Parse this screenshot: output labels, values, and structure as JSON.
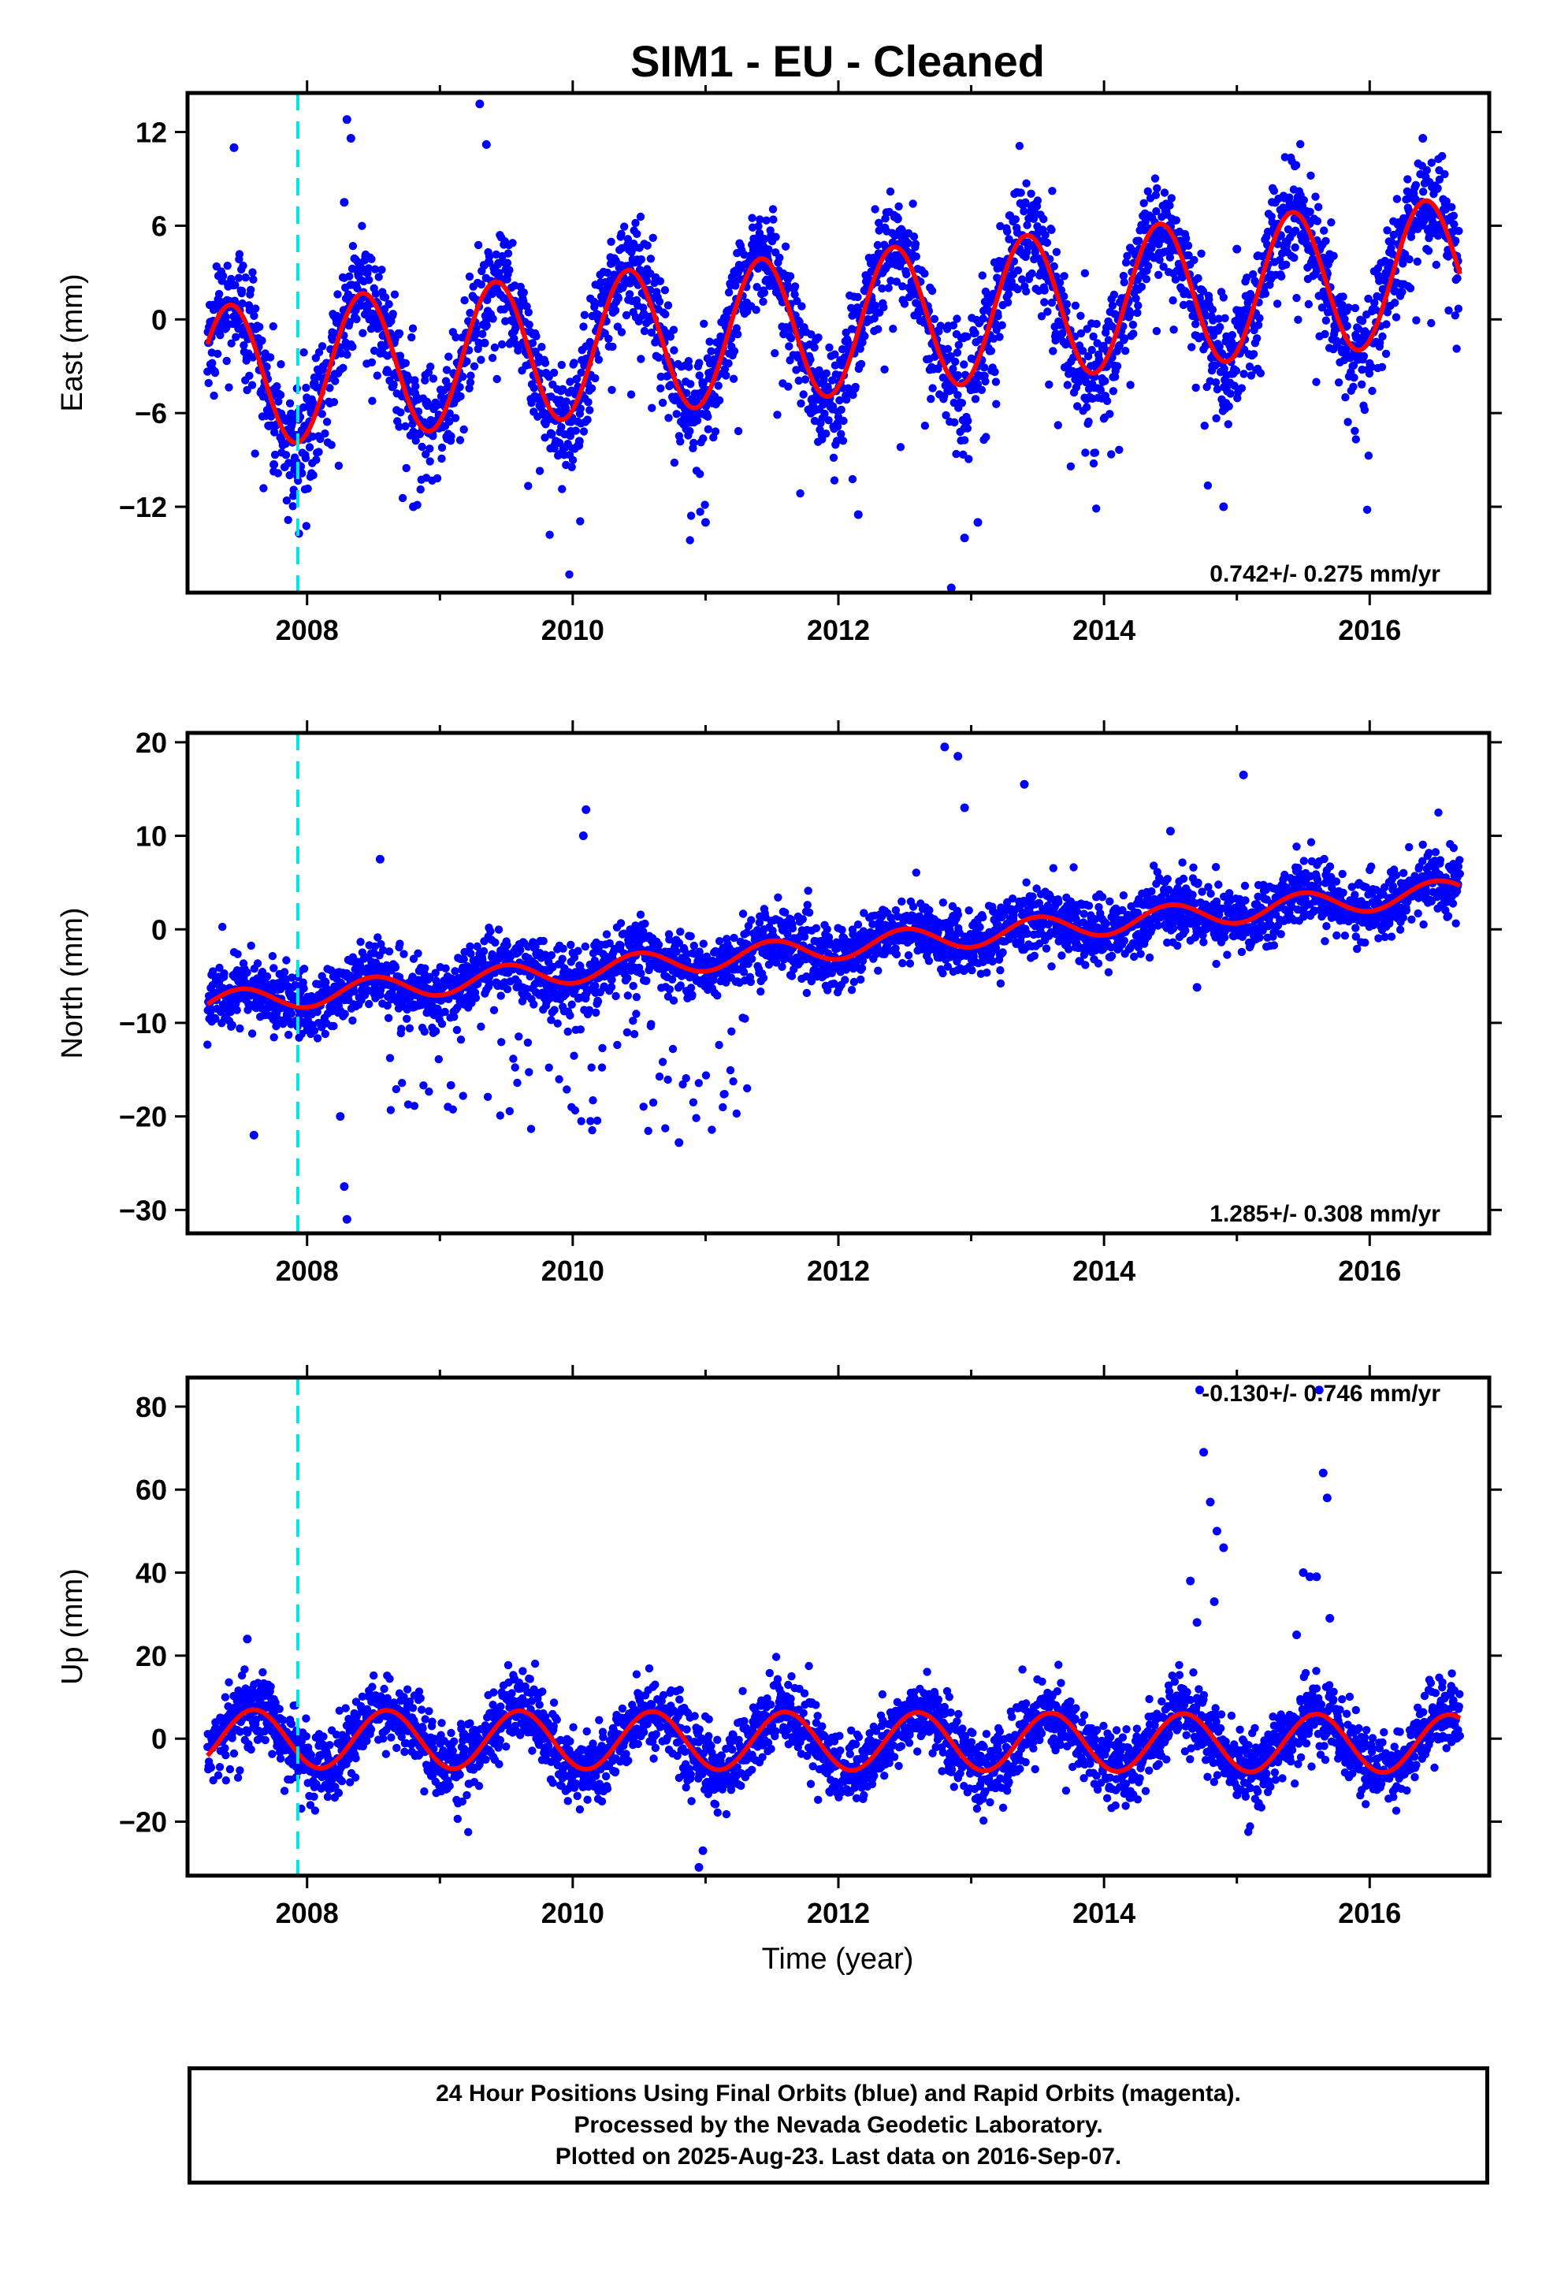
{
  "title": "SIM1  - EU - Cleaned",
  "xlabel": "Time (year)",
  "colors": {
    "points": "#0000ff",
    "fit": "#ff0000",
    "event": "#00e5e5",
    "frame": "#000000"
  },
  "footer": {
    "line1": "24 Hour Positions Using Final Orbits (blue) and Rapid Orbits (magenta).",
    "line2": "Processed by the Nevada Geodetic Laboratory.",
    "line3": "Plotted on 2025-Aug-23. Last data on 2016-Sep-07."
  },
  "chart_data": [
    {
      "type": "scatter",
      "panel": "east",
      "ylabel": "East (mm)",
      "rate_text": "0.742+/- 0.275 mm/yr",
      "xlim": [
        2007.1,
        2016.9
      ],
      "ylim": [
        -17.5,
        14.5
      ],
      "x_ticks": [
        2008,
        2010,
        2012,
        2014,
        2016
      ],
      "y_ticks": [
        12,
        6,
        0,
        -6,
        -12
      ],
      "y_tick_labels": [
        "12",
        "6",
        "0",
        "−6",
        "−12"
      ],
      "event_lines": [
        2007.93
      ],
      "fit": {
        "rate": 0.742,
        "offset": -3.8,
        "ref_year": 2007.25,
        "amplitude": 4.6,
        "phase_peak": 0.42
      },
      "outliers": [
        {
          "x": 2007.45,
          "y": 11
        },
        {
          "x": 2008.3,
          "y": 12.8
        },
        {
          "x": 2008.33,
          "y": 11.6
        },
        {
          "x": 2008.28,
          "y": 7.5
        },
        {
          "x": 2009.3,
          "y": 13.8
        },
        {
          "x": 2009.35,
          "y": 11.2
        },
        {
          "x": 2008.8,
          "y": -12
        },
        {
          "x": 2011.0,
          "y": -13
        },
        {
          "x": 2012.15,
          "y": -12.5
        },
        {
          "x": 2012.85,
          "y": -17.2
        },
        {
          "x": 2012.95,
          "y": -14
        },
        {
          "x": 2013.05,
          "y": -13
        },
        {
          "x": 2014.9,
          "y": -12
        },
        {
          "x": 2015.0,
          "y": 4.5
        },
        {
          "x": 2016.4,
          "y": 11.6
        },
        {
          "x": 2007.75,
          "y": -9.3
        },
        {
          "x": 2010.05,
          "y": -7.8
        }
      ]
    },
    {
      "type": "scatter",
      "panel": "north",
      "ylabel": "North (mm)",
      "rate_text": "1.285+/- 0.308 mm/yr",
      "xlim": [
        2007.1,
        2016.9
      ],
      "ylim": [
        -32.5,
        21
      ],
      "x_ticks": [
        2008,
        2010,
        2012,
        2014,
        2016
      ],
      "y_ticks": [
        20,
        10,
        0,
        -10,
        -20,
        -30
      ],
      "y_tick_labels": [
        "20",
        "10",
        "0",
        "−10",
        "−20",
        "−30"
      ],
      "event_lines": [
        2007.93
      ],
      "fit": {
        "rate": 1.285,
        "offset": -8.0,
        "ref_year": 2007.25,
        "amplitude": 1.3,
        "phase_peak": 0.5
      },
      "outliers": [
        {
          "x": 2012.8,
          "y": 19.5
        },
        {
          "x": 2012.9,
          "y": 18.5
        },
        {
          "x": 2012.95,
          "y": 13
        },
        {
          "x": 2013.4,
          "y": 15.5
        },
        {
          "x": 2015.05,
          "y": 16.5
        },
        {
          "x": 2010.1,
          "y": 12.8
        },
        {
          "x": 2010.08,
          "y": 10
        },
        {
          "x": 2008.3,
          "y": -31
        },
        {
          "x": 2008.28,
          "y": -27.5
        },
        {
          "x": 2008.55,
          "y": 7.5
        },
        {
          "x": 2014.5,
          "y": 10.5
        },
        {
          "x": 2014.7,
          "y": -6.2
        },
        {
          "x": 2007.6,
          "y": -22
        },
        {
          "x": 2010.8,
          "y": -22.8
        },
        {
          "x": 2008.25,
          "y": -20
        }
      ]
    },
    {
      "type": "scatter",
      "panel": "up",
      "ylabel": "Up (mm)",
      "rate_text": "-0.130+/- 0.746 mm/yr",
      "xlim": [
        2007.1,
        2016.9
      ],
      "ylim": [
        -33,
        87
      ],
      "x_ticks": [
        2008,
        2010,
        2012,
        2014,
        2016
      ],
      "y_ticks": [
        80,
        60,
        40,
        20,
        0,
        -20
      ],
      "y_tick_labels": [
        "80",
        "60",
        "40",
        "20",
        "0",
        "−20"
      ],
      "event_lines": [
        2007.93
      ],
      "fit": {
        "rate": -0.13,
        "offset": 0.0,
        "ref_year": 2007.25,
        "amplitude": 7.0,
        "phase_peak": 0.6
      },
      "outliers": [
        {
          "x": 2014.72,
          "y": 84
        },
        {
          "x": 2014.75,
          "y": 69
        },
        {
          "x": 2014.8,
          "y": 57
        },
        {
          "x": 2014.85,
          "y": 50
        },
        {
          "x": 2014.9,
          "y": 46
        },
        {
          "x": 2014.65,
          "y": 38
        },
        {
          "x": 2014.83,
          "y": 33
        },
        {
          "x": 2014.7,
          "y": 28
        },
        {
          "x": 2015.62,
          "y": 84
        },
        {
          "x": 2015.65,
          "y": 64
        },
        {
          "x": 2015.68,
          "y": 58
        },
        {
          "x": 2015.5,
          "y": 40
        },
        {
          "x": 2015.55,
          "y": 39
        },
        {
          "x": 2015.45,
          "y": 25
        },
        {
          "x": 2015.6,
          "y": 39
        },
        {
          "x": 2015.7,
          "y": 29
        },
        {
          "x": 2010.95,
          "y": -31
        },
        {
          "x": 2010.98,
          "y": -27
        },
        {
          "x": 2007.55,
          "y": 24
        }
      ]
    }
  ]
}
